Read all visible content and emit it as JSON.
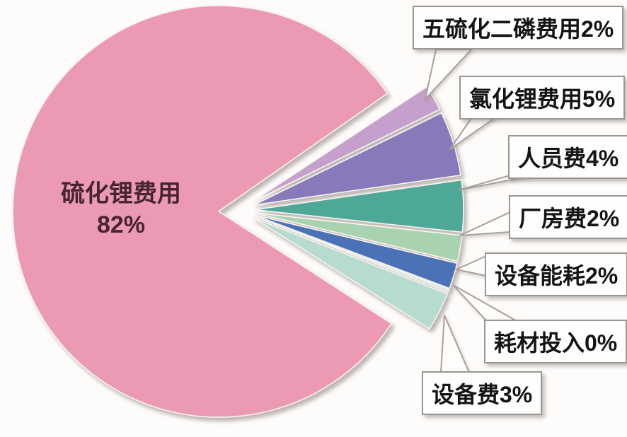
{
  "chart_data": {
    "type": "pie",
    "title": "",
    "legend_position": "none",
    "unit": "%",
    "slices": [
      {
        "label": "硫化锂费用",
        "value": 82,
        "color": "#ec9ab4"
      },
      {
        "label": "五硫化二磷费用",
        "value": 2,
        "color": "#c6a0cc"
      },
      {
        "label": "氯化锂费用",
        "value": 5,
        "color": "#8879bb"
      },
      {
        "label": "人员费",
        "value": 4,
        "color": "#4ea897"
      },
      {
        "label": "厂房费",
        "value": 2,
        "color": "#a9d2b0"
      },
      {
        "label": "设备能耗",
        "value": 2,
        "color": "#4b72b6"
      },
      {
        "label": "耗材投入",
        "value": 0,
        "color": "#d4eae1"
      },
      {
        "label": "设备费",
        "value": 3,
        "color": "#b7dbce"
      }
    ],
    "main_label": {
      "line1": "硫化锂费用",
      "line2": "82%"
    },
    "callouts": [
      {
        "text": "五硫化二磷费用2%"
      },
      {
        "text": "氯化锂费用5%"
      },
      {
        "text": "人员费4%"
      },
      {
        "text": "厂房费2%"
      },
      {
        "text": "设备能耗2%"
      },
      {
        "text": "耗材投入0%"
      },
      {
        "text": "设备费3%"
      }
    ]
  }
}
